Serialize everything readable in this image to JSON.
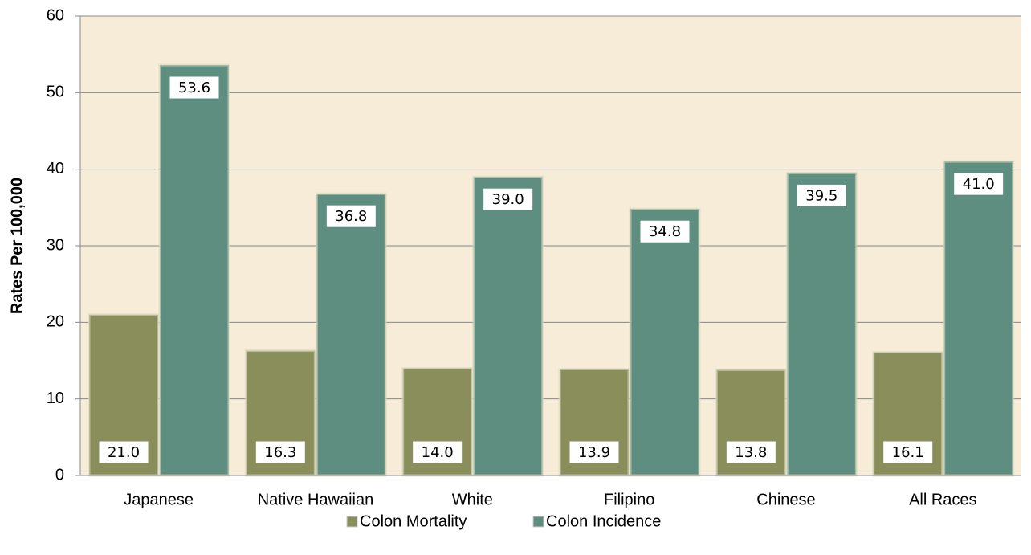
{
  "chart_data": {
    "type": "bar",
    "categories": [
      "Japanese",
      "Native Hawaiian",
      "White",
      "Filipino",
      "Chinese",
      "All Races"
    ],
    "series": [
      {
        "name": "Colon Mortality",
        "color": "#8a8e5b",
        "values": [
          21.0,
          16.3,
          14.0,
          13.9,
          13.8,
          16.1
        ],
        "value_labels": [
          "21.0",
          "16.3",
          "14.0",
          "13.9",
          "13.8",
          "16.1"
        ]
      },
      {
        "name": "Colon Incidence",
        "color": "#5e8e80",
        "values": [
          53.6,
          36.8,
          39.0,
          34.8,
          39.5,
          41.0
        ],
        "value_labels": [
          "53.6",
          "36.8",
          "39.0",
          "34.8",
          "39.5",
          "41.0"
        ]
      }
    ],
    "y_label": "Rates Per 100,000",
    "ylim": [
      0,
      60
    ],
    "yticks": [
      0,
      10,
      20,
      30,
      40,
      50,
      60
    ],
    "grid": true,
    "legend": "bottom"
  }
}
